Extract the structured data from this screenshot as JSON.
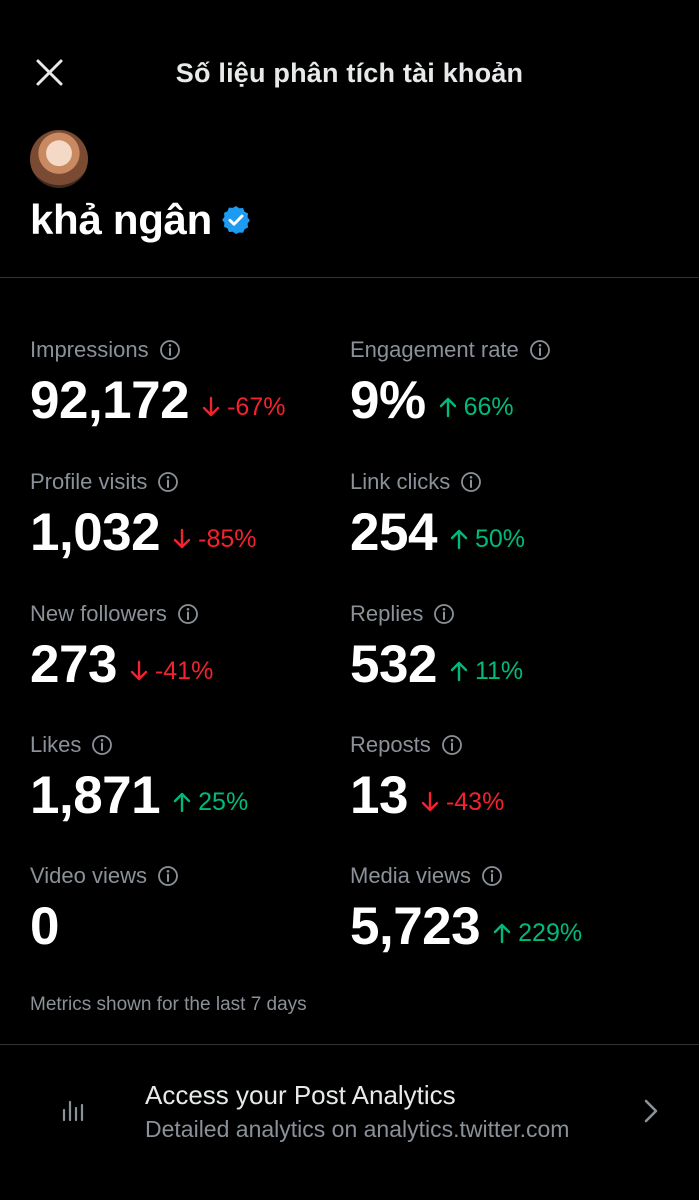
{
  "header": {
    "title": "Số liệu phân tích tài khoản"
  },
  "profile": {
    "name": "khả ngân"
  },
  "metrics": [
    {
      "label": "Impressions",
      "value": "92,172",
      "change": "-67%",
      "direction": "down"
    },
    {
      "label": "Engagement rate",
      "value": "9%",
      "change": "66%",
      "direction": "up"
    },
    {
      "label": "Profile visits",
      "value": "1,032",
      "change": "-85%",
      "direction": "down"
    },
    {
      "label": "Link clicks",
      "value": "254",
      "change": "50%",
      "direction": "up"
    },
    {
      "label": "New followers",
      "value": "273",
      "change": "-41%",
      "direction": "down"
    },
    {
      "label": "Replies",
      "value": "532",
      "change": "11%",
      "direction": "up"
    },
    {
      "label": "Likes",
      "value": "1,871",
      "change": "25%",
      "direction": "up"
    },
    {
      "label": "Reposts",
      "value": "13",
      "change": "-43%",
      "direction": "down"
    },
    {
      "label": "Video views",
      "value": "0",
      "change": "",
      "direction": "none"
    },
    {
      "label": "Media views",
      "value": "5,723",
      "change": "229%",
      "direction": "up"
    }
  ],
  "footnote": "Metrics shown for the last 7 days",
  "access": {
    "title": "Access your Post Analytics",
    "subtitle": "Detailed analytics on analytics.twitter.com"
  },
  "colors": {
    "background": "#000000",
    "up": "#00ba7c",
    "down": "#f4212e",
    "muted": "#8b9198",
    "verified": "#1d9bf0"
  },
  "icons": [
    "close-icon",
    "verified-badge-icon",
    "info-icon",
    "arrow-down-icon",
    "arrow-up-icon",
    "bar-chart-icon",
    "chevron-right-icon"
  ]
}
